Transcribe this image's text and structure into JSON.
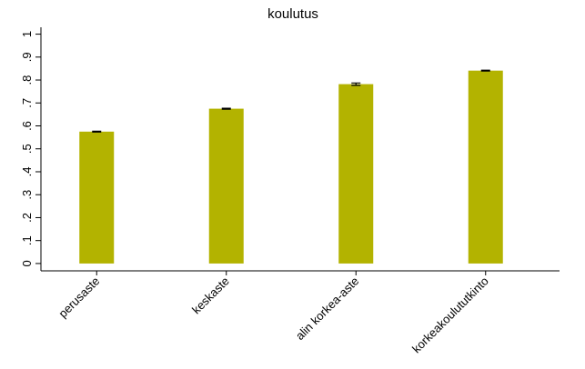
{
  "chart_data": {
    "type": "bar",
    "title": "koulutus",
    "categories": [
      "perusaste",
      "keskaste",
      "alin korkea-aste",
      "korkeakoulututkinto"
    ],
    "values": [
      0.575,
      0.675,
      0.782,
      0.841
    ],
    "errors": [
      0.002,
      0.002,
      0.005,
      0.002
    ],
    "color": "#b3b300",
    "ylim": [
      -0.032,
      1.03
    ],
    "yticks": [
      0,
      {
        "value": 0.1,
        "label": ".1"
      },
      {
        "value": 0.2,
        "label": ".2"
      },
      {
        "value": 0.3,
        "label": ".3"
      },
      {
        "value": 0.4,
        "label": ".4"
      },
      {
        "value": 0.5,
        "label": ".5"
      },
      {
        "value": 0.6,
        "label": ".6"
      },
      {
        "value": 0.7,
        "label": ".7"
      },
      {
        "value": 0.8,
        "label": ".8"
      },
      {
        "value": 0.9,
        "label": ".9"
      },
      1
    ],
    "grid": false
  }
}
